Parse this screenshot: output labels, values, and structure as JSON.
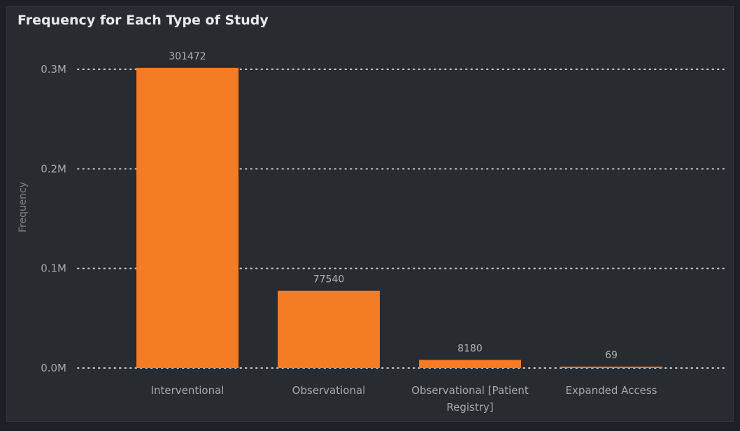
{
  "chart_data": {
    "type": "bar",
    "title": "Frequency for Each Type of Study",
    "ylabel": "Frequency",
    "xlabel": "",
    "categories": [
      "Interventional",
      "Observational",
      "Observational [Patient Registry]",
      "Expanded Access"
    ],
    "category_label_lines": [
      [
        "Interventional"
      ],
      [
        "Observational"
      ],
      [
        "Observational [Patient",
        "Registry]"
      ],
      [
        "Expanded Access"
      ]
    ],
    "values": [
      301472,
      77540,
      8180,
      69
    ],
    "data_labels": [
      "301472",
      "77540",
      "8180",
      "69"
    ],
    "yticks": [
      0,
      100000,
      200000,
      300000
    ],
    "ytick_labels": [
      "0.0M",
      "0.1M",
      "0.2M",
      "0.3M"
    ],
    "ylim": [
      0,
      300000
    ],
    "grid": true,
    "legend": "none",
    "bar_color": "#f47c24",
    "background_color": "#282b30"
  }
}
